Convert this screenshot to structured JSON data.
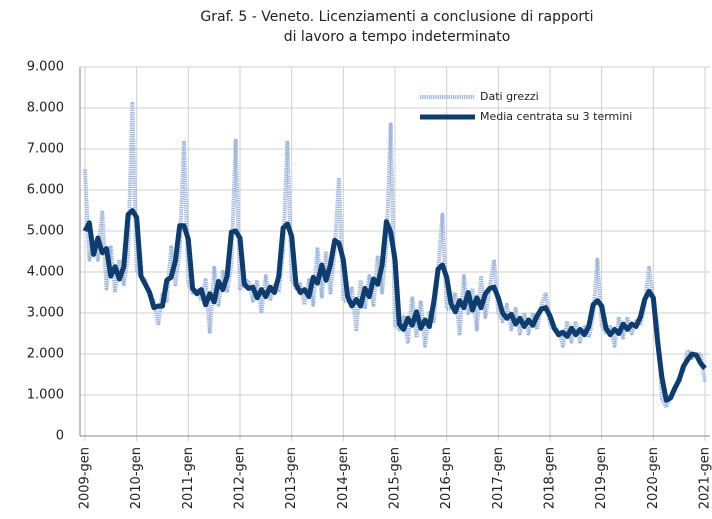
{
  "chart_data": {
    "type": "line",
    "title": [
      "Graf. 5 - Veneto. Licenziamenti a conclusione di rapporti",
      "di lavoro a tempo indeterminato"
    ],
    "categories": [
      "2009-gen",
      null,
      null,
      null,
      null,
      null,
      null,
      null,
      null,
      null,
      null,
      null,
      "2010-gen",
      null,
      null,
      null,
      null,
      null,
      null,
      null,
      null,
      null,
      null,
      null,
      "2011-gen",
      null,
      null,
      null,
      null,
      null,
      null,
      null,
      null,
      null,
      null,
      null,
      "2012-gen",
      null,
      null,
      null,
      null,
      null,
      null,
      null,
      null,
      null,
      null,
      null,
      "2013-gen",
      null,
      null,
      null,
      null,
      null,
      null,
      null,
      null,
      null,
      null,
      null,
      "2014-gen",
      null,
      null,
      null,
      null,
      null,
      null,
      null,
      null,
      null,
      null,
      null,
      "2015-gen",
      null,
      null,
      null,
      null,
      null,
      null,
      null,
      null,
      null,
      null,
      null,
      "2016-gen",
      null,
      null,
      null,
      null,
      null,
      null,
      null,
      null,
      null,
      null,
      null,
      "2017-gen",
      null,
      null,
      null,
      null,
      null,
      null,
      null,
      null,
      null,
      null,
      null,
      "2018-gen",
      null,
      null,
      null,
      null,
      null,
      null,
      null,
      null,
      null,
      null,
      null,
      "2019-gen",
      null,
      null,
      null,
      null,
      null,
      null,
      null,
      null,
      null,
      null,
      null,
      "2020-gen",
      null,
      null,
      null,
      null,
      null,
      null,
      null,
      null,
      null,
      null,
      null,
      "2021-gen"
    ],
    "series": [
      {
        "name": "Dati grezzi",
        "color": "#9fb6df",
        "style": "hatched",
        "values": [
          6500,
          4300,
          4700,
          4300,
          5500,
          3600,
          4600,
          3500,
          4300,
          3700,
          4400,
          8100,
          4000,
          3900,
          3800,
          3400,
          3300,
          2700,
          3500,
          3300,
          4600,
          3700,
          4500,
          7200,
          3700,
          3500,
          3600,
          3300,
          3800,
          2500,
          4100,
          3200,
          4000,
          3500,
          4200,
          7200,
          3600,
          3700,
          3800,
          3300,
          3800,
          3000,
          3900,
          3300,
          3700,
          3500,
          4500,
          7200,
          3800,
          3600,
          3700,
          3200,
          3800,
          3200,
          4600,
          3400,
          4500,
          3500,
          4500,
          6300,
          3300,
          3300,
          3600,
          2600,
          3800,
          3100,
          3900,
          3200,
          4400,
          3500,
          4600,
          7600,
          2700,
          2600,
          2900,
          2300,
          3400,
          2400,
          3300,
          2200,
          3000,
          2800,
          4000,
          5400,
          3100,
          3100,
          3500,
          2500,
          3900,
          3000,
          3600,
          2600,
          3900,
          2900,
          3600,
          4300,
          3000,
          2800,
          3200,
          2600,
          3100,
          2500,
          3000,
          2500,
          3000,
          2600,
          3200,
          3500,
          2700,
          2600,
          2600,
          2200,
          2800,
          2300,
          2800,
          2300,
          2700,
          2400,
          2900,
          4300,
          2700,
          2500,
          2700,
          2200,
          2900,
          2400,
          2900,
          2500,
          2800,
          2700,
          3200,
          4100,
          3300,
          2700,
          900,
          700,
          1000,
          1100,
          1400,
          1600,
          2100,
          1900,
          2000,
          2000,
          1300
        ]
      },
      {
        "name": "Media centrata su 3 termini",
        "color": "#0d3c6e",
        "style": "solid",
        "values": [
          5000,
          5200,
          4430,
          4830,
          4470,
          4570,
          3900,
          4130,
          3830,
          4130,
          5400,
          5500,
          5330,
          3900,
          3700,
          3500,
          3130,
          3170,
          3170,
          3800,
          3870,
          4270,
          5130,
          5130,
          4800,
          3600,
          3470,
          3570,
          3200,
          3470,
          3270,
          3770,
          3570,
          3900,
          4970,
          5000,
          4830,
          3700,
          3600,
          3630,
          3370,
          3570,
          3400,
          3630,
          3500,
          3900,
          5070,
          5170,
          4870,
          3700,
          3500,
          3570,
          3400,
          3870,
          3730,
          4170,
          3800,
          4170,
          4770,
          4700,
          4300,
          3400,
          3170,
          3330,
          3170,
          3600,
          3400,
          3830,
          3700,
          4170,
          5230,
          4970,
          4300,
          2730,
          2600,
          2870,
          2700,
          3030,
          2630,
          2830,
          2670,
          3270,
          4070,
          4170,
          3870,
          3230,
          3030,
          3300,
          3130,
          3500,
          3070,
          3370,
          3130,
          3470,
          3600,
          3630,
          3370,
          3000,
          2870,
          2970,
          2730,
          2870,
          2670,
          2830,
          2700,
          2930,
          3100,
          3130,
          2930,
          2630,
          2470,
          2530,
          2430,
          2630,
          2470,
          2600,
          2470,
          2670,
          3200,
          3300,
          3170,
          2630,
          2470,
          2600,
          2500,
          2730,
          2600,
          2730,
          2670,
          2900,
          3330,
          3530,
          3370,
          2300,
          1430,
          870,
          930,
          1170,
          1370,
          1700,
          1870,
          2000,
          1970,
          1770,
          1650
        ]
      }
    ],
    "ylim": [
      0,
      9000
    ],
    "yticks": [
      0,
      {
        "value": 1000,
        "label": "1.000"
      },
      {
        "value": 2000,
        "label": "2.000"
      },
      {
        "value": 3000,
        "label": "3.000"
      },
      {
        "value": 4000,
        "label": "4.000"
      },
      {
        "value": 5000,
        "label": "5.000"
      },
      {
        "value": 6000,
        "label": "6.000"
      },
      {
        "value": 7000,
        "label": "7.000"
      },
      {
        "value": 8000,
        "label": "8.000"
      },
      {
        "value": 9000,
        "label": "9.000"
      }
    ],
    "grid": true,
    "legend": "top-right"
  }
}
